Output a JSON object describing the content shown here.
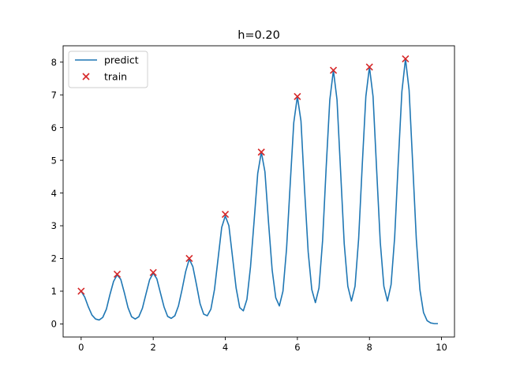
{
  "chart_data": {
    "type": "line",
    "title": "h=0.20",
    "xlabel": "",
    "ylabel": "",
    "xlim": [
      -0.5,
      10.36
    ],
    "ylim": [
      -0.4,
      8.5
    ],
    "xticks": [
      0,
      2,
      4,
      6,
      8,
      10
    ],
    "yticks": [
      0,
      1,
      2,
      3,
      4,
      5,
      6,
      7,
      8
    ],
    "grid": false,
    "legend_position": "upper left",
    "series": [
      {
        "name": "predict",
        "kind": "line",
        "color": "#1f77b4",
        "x": [
          0,
          0.1,
          0.2,
          0.3,
          0.4,
          0.5,
          0.6,
          0.7,
          0.8,
          0.9,
          1.0,
          1.1,
          1.2,
          1.3,
          1.4,
          1.5,
          1.6,
          1.7,
          1.8,
          1.9,
          2.0,
          2.1,
          2.2,
          2.3,
          2.4,
          2.5,
          2.6,
          2.7,
          2.8,
          2.9,
          3.0,
          3.1,
          3.2,
          3.3,
          3.4,
          3.5,
          3.6,
          3.7,
          3.8,
          3.9,
          4.0,
          4.1,
          4.2,
          4.3,
          4.4,
          4.5,
          4.6,
          4.7,
          4.8,
          4.9,
          5.0,
          5.1,
          5.2,
          5.3,
          5.4,
          5.5,
          5.6,
          5.7,
          5.8,
          5.9,
          6.0,
          6.1,
          6.2,
          6.3,
          6.4,
          6.5,
          6.6,
          6.7,
          6.8,
          6.9,
          7.0,
          7.1,
          7.2,
          7.3,
          7.4,
          7.5,
          7.6,
          7.7,
          7.8,
          7.9,
          8.0,
          8.1,
          8.2,
          8.3,
          8.4,
          8.5,
          8.6,
          8.7,
          8.8,
          8.9,
          9.0,
          9.1,
          9.2,
          9.3,
          9.4,
          9.5,
          9.6,
          9.7,
          9.8,
          9.9
        ],
        "y": [
          1.0,
          0.82,
          0.52,
          0.27,
          0.15,
          0.12,
          0.2,
          0.45,
          0.9,
          1.3,
          1.5,
          1.36,
          0.95,
          0.5,
          0.22,
          0.15,
          0.22,
          0.48,
          0.92,
          1.35,
          1.55,
          1.38,
          0.95,
          0.52,
          0.23,
          0.17,
          0.25,
          0.55,
          1.05,
          1.6,
          1.98,
          1.75,
          1.2,
          0.62,
          0.3,
          0.25,
          0.45,
          1.05,
          2.0,
          2.95,
          3.3,
          3.0,
          2.05,
          1.1,
          0.5,
          0.4,
          0.75,
          1.75,
          3.15,
          4.6,
          5.25,
          4.65,
          3.1,
          1.65,
          0.8,
          0.55,
          1.0,
          2.3,
          4.25,
          6.15,
          6.95,
          6.2,
          4.1,
          2.2,
          1.05,
          0.65,
          1.1,
          2.55,
          4.8,
          6.85,
          7.75,
          6.85,
          4.65,
          2.45,
          1.15,
          0.7,
          1.15,
          2.6,
          4.85,
          6.95,
          7.85,
          6.95,
          4.7,
          2.5,
          1.15,
          0.7,
          1.2,
          2.65,
          4.95,
          7.1,
          8.1,
          7.15,
          4.9,
          2.6,
          1.05,
          0.35,
          0.1,
          0.03,
          0.01,
          0.01
        ]
      },
      {
        "name": "train",
        "kind": "scatter",
        "marker": "x",
        "color": "#d62728",
        "x": [
          0,
          1,
          2,
          3,
          4,
          5,
          6,
          7,
          8,
          9
        ],
        "y": [
          1.0,
          1.52,
          1.57,
          2.0,
          3.35,
          5.25,
          6.95,
          7.75,
          7.85,
          8.1
        ]
      }
    ]
  }
}
